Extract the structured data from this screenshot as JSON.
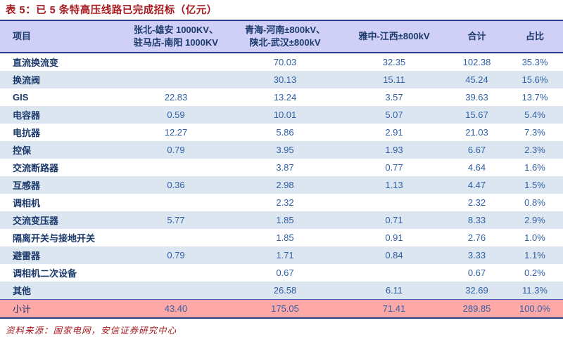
{
  "title": "表 5：已 5 条特高压线路已完成招标（亿元）",
  "source": "资料来源：国家电网，安信证券研究中心",
  "colors": {
    "title_red": "#A6191E",
    "header_bg": "#CFCFF7",
    "alt_row_bg": "#DCE6F1",
    "subtotal_bg": "#FFA8A8",
    "border_navy": "#2E3A87",
    "label_navy": "#1B3A6B",
    "value_blue": "#2F5FA5"
  },
  "table": {
    "columns": [
      {
        "key": "item",
        "lines": [
          "项目"
        ]
      },
      {
        "key": "line1",
        "lines": [
          "张北-雄安 1000KV、",
          "驻马店-南阳 1000KV"
        ]
      },
      {
        "key": "line2",
        "lines": [
          "青海-河南±800kV、",
          "陕北-武汉±800kV"
        ]
      },
      {
        "key": "line3",
        "lines": [
          "雅中-江西±800kV"
        ]
      },
      {
        "key": "total",
        "lines": [
          "合计"
        ]
      },
      {
        "key": "share",
        "lines": [
          "占比"
        ]
      }
    ],
    "rows": [
      {
        "label": "直流换流变",
        "values": [
          "",
          "70.03",
          "32.35",
          "102.38",
          "35.3%"
        ],
        "subtotal": false
      },
      {
        "label": "换流阀",
        "values": [
          "",
          "30.13",
          "15.11",
          "45.24",
          "15.6%"
        ],
        "subtotal": false
      },
      {
        "label": "GIS",
        "values": [
          "22.83",
          "13.24",
          "3.57",
          "39.63",
          "13.7%"
        ],
        "subtotal": false
      },
      {
        "label": "电容器",
        "values": [
          "0.59",
          "10.01",
          "5.07",
          "15.67",
          "5.4%"
        ],
        "subtotal": false
      },
      {
        "label": "电抗器",
        "values": [
          "12.27",
          "5.86",
          "2.91",
          "21.03",
          "7.3%"
        ],
        "subtotal": false
      },
      {
        "label": "控保",
        "values": [
          "0.79",
          "3.95",
          "1.93",
          "6.67",
          "2.3%"
        ],
        "subtotal": false
      },
      {
        "label": "交流断路器",
        "values": [
          "",
          "3.87",
          "0.77",
          "4.64",
          "1.6%"
        ],
        "subtotal": false
      },
      {
        "label": "互感器",
        "values": [
          "0.36",
          "2.98",
          "1.13",
          "4.47",
          "1.5%"
        ],
        "subtotal": false
      },
      {
        "label": "调相机",
        "values": [
          "",
          "2.32",
          "",
          "2.32",
          "0.8%"
        ],
        "subtotal": false
      },
      {
        "label": "交流变压器",
        "values": [
          "5.77",
          "1.85",
          "0.71",
          "8.33",
          "2.9%"
        ],
        "subtotal": false
      },
      {
        "label": "隔离开关与接地开关",
        "values": [
          "",
          "1.85",
          "0.91",
          "2.76",
          "1.0%"
        ],
        "subtotal": false
      },
      {
        "label": "避雷器",
        "values": [
          "0.79",
          "1.71",
          "0.84",
          "3.33",
          "1.1%"
        ],
        "subtotal": false
      },
      {
        "label": "调相机二次设备",
        "values": [
          "",
          "0.67",
          "",
          "0.67",
          "0.2%"
        ],
        "subtotal": false
      },
      {
        "label": "其他",
        "values": [
          "",
          "26.58",
          "6.11",
          "32.69",
          "11.3%"
        ],
        "subtotal": false
      },
      {
        "label": "小计",
        "values": [
          "43.40",
          "175.05",
          "71.41",
          "289.85",
          "100.0%"
        ],
        "subtotal": true
      }
    ]
  }
}
